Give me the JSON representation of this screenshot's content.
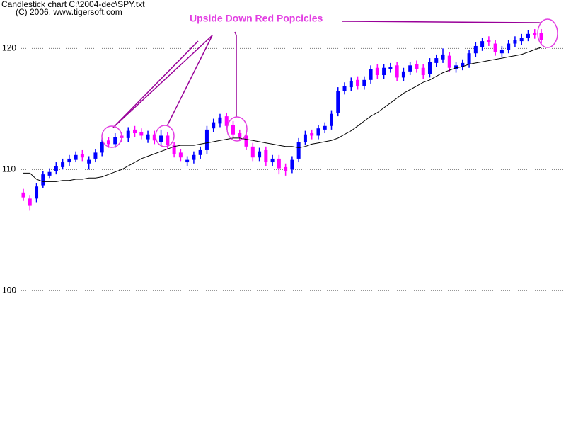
{
  "chart_data": {
    "type": "candlestick",
    "title": "Candlestick chart C:\\2004-dec\\SPY.txt",
    "subtitle": "(C) 2006, www.tigersoft.com",
    "annotation": "Upside Down Red Popcicles",
    "ylim": [
      88.9,
      124.0
    ],
    "yticks": [
      100,
      110,
      120
    ],
    "grid": true,
    "up_color": "#0000ff",
    "down_color": "#ff00ff",
    "ma_color": "#000000",
    "open": [
      108.1,
      107.6,
      107.6,
      108.7,
      109.5,
      109.9,
      110.2,
      110.6,
      110.8,
      111.3,
      110.5,
      110.9,
      111.4,
      112.4,
      112.1,
      112.8,
      112.6,
      113.3,
      113.1,
      112.5,
      112.9,
      112.3,
      112.8,
      112.0,
      111.4,
      110.6,
      110.8,
      111.2,
      111.6,
      113.4,
      113.8,
      114.4,
      113.7,
      113.0,
      112.8,
      111.9,
      111.0,
      111.6,
      110.6,
      110.9,
      110.2,
      110.0,
      110.9,
      112.3,
      113.0,
      112.8,
      113.3,
      113.6,
      114.7,
      116.5,
      116.8,
      117.4,
      116.9,
      117.4,
      118.4,
      117.8,
      118.3,
      118.6,
      117.6,
      118.1,
      118.7,
      118.4,
      117.9,
      118.8,
      119.1,
      119.4,
      118.3,
      118.5,
      118.7,
      119.6,
      120.1,
      120.7,
      120.4,
      119.6,
      119.9,
      120.4,
      120.6,
      120.9,
      121.3,
      121.3
    ],
    "high": [
      108.4,
      107.9,
      108.9,
      109.9,
      110.1,
      110.6,
      110.9,
      111.2,
      111.5,
      111.6,
      111.1,
      111.7,
      112.6,
      112.7,
      113.0,
      113.1,
      113.5,
      113.6,
      113.4,
      113.2,
      113.2,
      113.3,
      113.1,
      112.3,
      111.7,
      111.1,
      111.5,
      111.9,
      113.6,
      114.2,
      114.6,
      114.7,
      114.0,
      113.3,
      113.1,
      112.2,
      111.8,
      111.9,
      111.2,
      111.2,
      110.5,
      111.1,
      112.6,
      113.2,
      113.3,
      113.7,
      113.9,
      114.9,
      116.8,
      117.2,
      117.6,
      117.7,
      117.7,
      118.6,
      118.7,
      118.7,
      118.8,
      118.9,
      118.4,
      118.9,
      119.0,
      118.7,
      119.2,
      119.5,
      120.0,
      119.7,
      118.9,
      119.1,
      119.9,
      120.5,
      120.9,
      121.0,
      120.7,
      120.2,
      120.7,
      121.0,
      121.2,
      121.5,
      121.6,
      121.6
    ],
    "low": [
      107.4,
      106.6,
      107.3,
      108.5,
      109.3,
      109.6,
      110.0,
      110.3,
      110.6,
      110.7,
      110.0,
      110.6,
      111.1,
      111.8,
      111.8,
      112.3,
      112.3,
      112.7,
      112.5,
      112.2,
      112.1,
      112.0,
      111.7,
      111.0,
      110.7,
      110.3,
      110.5,
      110.9,
      111.3,
      113.1,
      113.5,
      113.3,
      112.6,
      112.4,
      111.6,
      110.7,
      110.7,
      110.3,
      110.3,
      109.6,
      109.5,
      109.7,
      110.6,
      112.0,
      112.5,
      112.5,
      113.0,
      113.3,
      114.4,
      116.2,
      116.5,
      116.6,
      116.6,
      117.1,
      117.5,
      117.5,
      118.0,
      117.3,
      117.3,
      117.8,
      118.0,
      117.5,
      117.6,
      118.5,
      118.8,
      118.1,
      118.0,
      118.2,
      118.4,
      119.3,
      119.8,
      120.2,
      119.4,
      119.3,
      119.6,
      120.1,
      120.3,
      120.6,
      120.8,
      120.4
    ],
    "close": [
      107.7,
      107.0,
      108.6,
      109.6,
      109.8,
      110.3,
      110.6,
      110.9,
      111.2,
      111.0,
      110.8,
      111.4,
      112.3,
      112.1,
      112.7,
      112.6,
      113.2,
      113.0,
      112.8,
      112.9,
      112.4,
      112.8,
      112.0,
      111.3,
      111.0,
      110.8,
      111.2,
      111.6,
      113.3,
      113.9,
      114.3,
      113.6,
      112.9,
      112.7,
      111.9,
      111.0,
      111.5,
      110.6,
      110.9,
      110.1,
      109.9,
      110.8,
      112.3,
      112.9,
      112.8,
      113.4,
      113.6,
      114.6,
      116.5,
      116.9,
      117.3,
      116.9,
      117.4,
      118.3,
      117.8,
      118.4,
      118.5,
      117.6,
      118.1,
      118.6,
      118.3,
      117.8,
      118.9,
      119.2,
      119.5,
      118.4,
      118.6,
      118.8,
      119.6,
      120.2,
      120.6,
      120.5,
      119.7,
      119.9,
      120.4,
      120.7,
      120.9,
      121.2,
      121.1,
      120.7
    ],
    "moving_average": [
      109.7,
      109.7,
      109.2,
      109.0,
      109.0,
      109.0,
      109.1,
      109.1,
      109.2,
      109.2,
      109.3,
      109.3,
      109.4,
      109.6,
      109.8,
      110.0,
      110.3,
      110.6,
      110.9,
      111.1,
      111.3,
      111.5,
      111.7,
      111.9,
      112.0,
      112.0,
      112.0,
      112.1,
      112.2,
      112.3,
      112.4,
      112.5,
      112.6,
      112.6,
      112.5,
      112.4,
      112.3,
      112.2,
      112.1,
      112.0,
      111.9,
      111.9,
      111.8,
      111.9,
      112.1,
      112.2,
      112.3,
      112.4,
      112.6,
      112.9,
      113.2,
      113.6,
      114.0,
      114.4,
      114.7,
      115.1,
      115.5,
      115.9,
      116.3,
      116.6,
      116.9,
      117.2,
      117.4,
      117.7,
      118.0,
      118.2,
      118.4,
      118.5,
      118.7,
      118.8,
      118.9,
      119.0,
      119.1,
      119.2,
      119.3,
      119.4,
      119.5,
      119.7,
      119.9,
      120.1
    ]
  }
}
